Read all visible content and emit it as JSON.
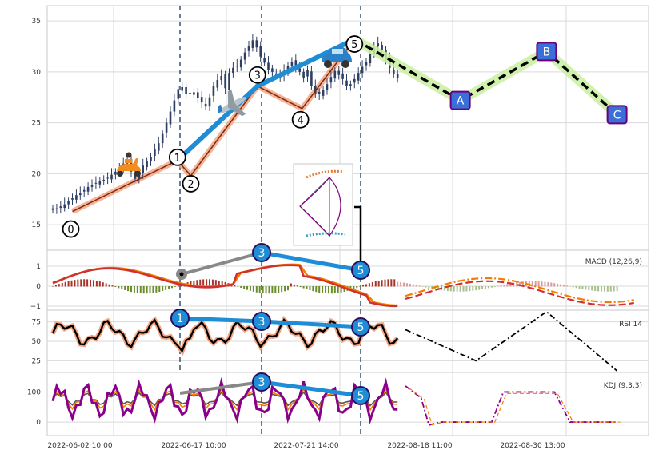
{
  "chart_data": [
    {
      "panel": "price",
      "type": "line",
      "ylim": [
        12.5,
        36.5
      ],
      "yticks": [
        "15",
        "20",
        "25",
        "30",
        "35"
      ],
      "candle_series": {
        "x": [
          0,
          5,
          10,
          15,
          20,
          25,
          30,
          35,
          40,
          45,
          50,
          55,
          60,
          65,
          70,
          75,
          80,
          85,
          90,
          95,
          100,
          105,
          110,
          115,
          120,
          125,
          130,
          135,
          140,
          145,
          150,
          155,
          160,
          165,
          170,
          175,
          180,
          185,
          190,
          195,
          200,
          205,
          210,
          215,
          220,
          225,
          230,
          235,
          240,
          245,
          250,
          255,
          260,
          265,
          270,
          275,
          280,
          285,
          290,
          295,
          300,
          305,
          310,
          315,
          320,
          325,
          330,
          335,
          340,
          345,
          350,
          355,
          360,
          365,
          370,
          375,
          380,
          385,
          390,
          395,
          400,
          405,
          410,
          415,
          420,
          425,
          430,
          435,
          440
        ],
        "close": [
          16.6,
          16.5,
          16.8,
          17.0,
          17.3,
          17.6,
          17.9,
          18.1,
          18.4,
          18.7,
          18.9,
          19.1,
          19.3,
          19.4,
          19.6,
          19.9,
          20.2,
          20.6,
          21.0,
          21.3,
          20.2,
          19.5,
          19.9,
          20.8,
          21.2,
          21.6,
          22.4,
          23.0,
          23.9,
          25.0,
          26.1,
          27.2,
          28.3,
          28.5,
          27.8,
          27.9,
          28.0,
          27.4,
          27.0,
          26.6,
          27.5,
          28.6,
          29.2,
          29.6,
          28.4,
          29.9,
          30.4,
          30.6,
          31.2,
          31.9,
          32.5,
          33.1,
          32.4,
          31.5,
          30.9,
          30.2,
          30.0,
          29.7,
          29.5,
          30.1,
          30.6,
          31.0,
          30.5,
          30.0,
          29.4,
          30.2,
          28.6,
          27.9,
          27.8,
          28.2,
          28.8,
          29.5,
          30.1,
          29.7,
          29.3,
          28.6,
          28.8,
          29.3,
          29.9,
          30.5,
          31.0,
          31.8,
          32.4,
          32.8,
          32.1,
          31.2,
          30.4,
          29.8,
          29.4
        ]
      },
      "wave_points": [
        {
          "label": "0",
          "x": 25,
          "y": 16.3
        },
        {
          "label": "1",
          "x": 159,
          "y": 21.3
        },
        {
          "label": "2",
          "x": 176,
          "y": 19.8
        },
        {
          "label": "3",
          "x": 261,
          "y": 28.6
        },
        {
          "label": "4",
          "x": 318,
          "y": 26.4
        },
        {
          "label": "5",
          "x": 385,
          "y": 33.2
        }
      ],
      "abc_points": [
        {
          "label": "A",
          "x": 520,
          "y": 27.2
        },
        {
          "label": "B",
          "x": 630,
          "y": 32.0
        },
        {
          "label": "C",
          "x": 720,
          "y": 25.8
        }
      ]
    },
    {
      "panel": "macd",
      "type": "line",
      "label": "MACD (12,26,9)",
      "ylim": [
        -1.2,
        1.8
      ],
      "yticks": [
        "1",
        "0",
        "−1"
      ]
    },
    {
      "panel": "rsi",
      "type": "line",
      "label": "RSI 14",
      "ylim": [
        10,
        90
      ],
      "yticks": [
        "75",
        "50",
        "25"
      ]
    },
    {
      "panel": "kdj",
      "type": "line",
      "label": "KDJ (9,3,3)",
      "ylim": [
        -45,
        165
      ],
      "yticks": [
        "100",
        "0"
      ]
    }
  ],
  "x_axis": {
    "tick_labels": [
      "2022-06-02 10:00",
      "2022-06-17 10:00",
      "2022-07-21 14:00",
      "2022-08-18 11:00",
      "2022-08-30 13:00"
    ]
  },
  "divergences": {
    "macd": [
      "3",
      "5"
    ],
    "rsi": [
      "1",
      "3",
      "5"
    ],
    "kdj": [
      "3",
      "5"
    ]
  },
  "colors": {
    "impulse_wave": "#1f8dd6",
    "candles": "#2f3f63",
    "price_channel": "#f4a582",
    "correction_glow_a": "#d8f58a",
    "correction_glow_b": "#b7eeb2",
    "abc_box": "#3a6fd8",
    "macd_line": "#d0312d",
    "signal_line": "#f57c00",
    "kdj_j": "#8b008b",
    "rsi_line": "#000000",
    "vline": "#34506e",
    "grid": "#d9d9d9"
  }
}
